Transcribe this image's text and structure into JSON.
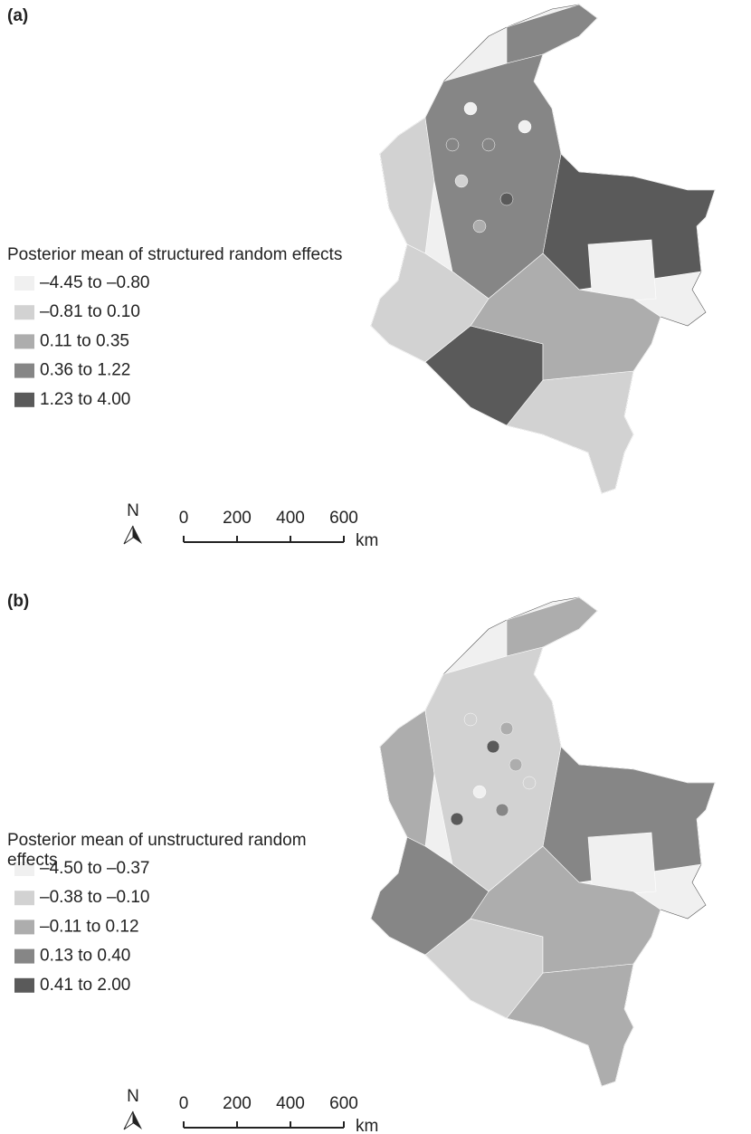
{
  "panels": [
    {
      "label": "(a)",
      "legend": {
        "title": "Posterior mean of structured random effects",
        "items": [
          {
            "label": "–4.45 to –0.80",
            "color": "#f0f0f0"
          },
          {
            "label": "–0.81 to 0.10",
            "color": "#d2d2d2"
          },
          {
            "label": "0.11 to 0.35",
            "color": "#adadad"
          },
          {
            "label": "0.36 to 1.22",
            "color": "#868686"
          },
          {
            "label": "1.23 to 4.00",
            "color": "#5a5a5a"
          }
        ]
      },
      "scale_bar": {
        "north": "N",
        "ticks": [
          0,
          200,
          400,
          600
        ],
        "unit": "km"
      }
    },
    {
      "label": "(b)",
      "legend": {
        "title": "Posterior mean of unstructured random effects",
        "items": [
          {
            "label": "–4.50 to –0.37",
            "color": "#f0f0f0"
          },
          {
            "label": "–0.38 to –0.10",
            "color": "#d2d2d2"
          },
          {
            "label": "–0.11 to 0.12",
            "color": "#adadad"
          },
          {
            "label": "0.13 to 0.40",
            "color": "#868686"
          },
          {
            "label": "0.41 to 2.00",
            "color": "#5a5a5a"
          }
        ]
      },
      "scale_bar": {
        "north": "N",
        "ticks": [
          0,
          200,
          400,
          600
        ],
        "unit": "km"
      }
    }
  ]
}
